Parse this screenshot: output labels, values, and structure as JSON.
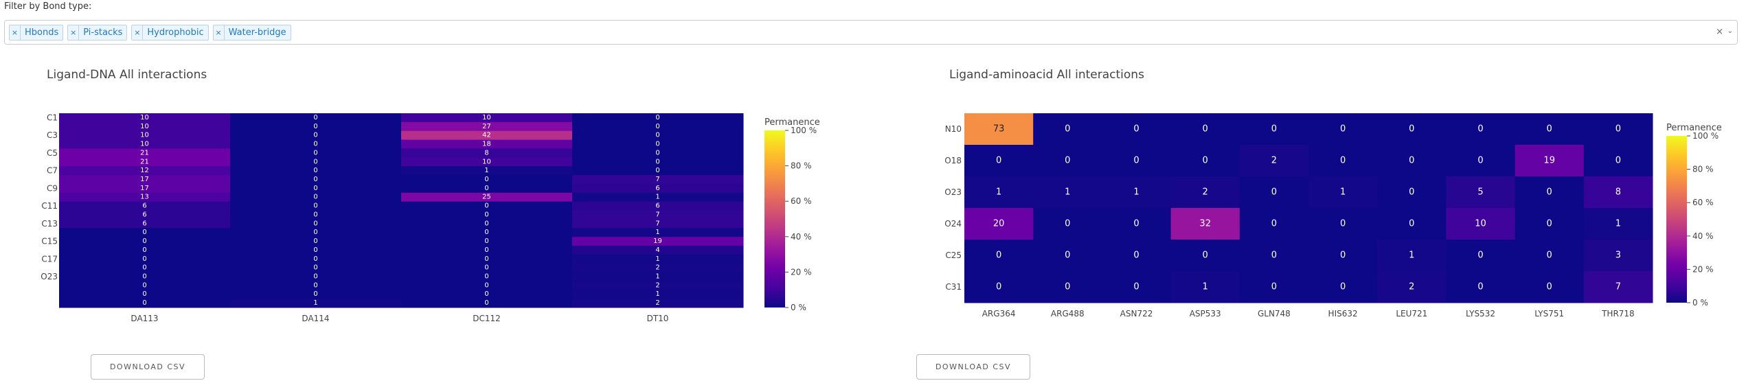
{
  "filter": {
    "label": "Filter by Bond type:",
    "tags": [
      {
        "remove": "×",
        "label": "Hbonds"
      },
      {
        "remove": "×",
        "label": "Pi-stacks"
      },
      {
        "remove": "×",
        "label": "Hydrophobic"
      },
      {
        "remove": "×",
        "label": "Water-bridge"
      }
    ],
    "clear_glyph": "×",
    "dropdown_glyph": "⌄"
  },
  "colorbar": {
    "title": "Permanence",
    "ticks": [
      "100 %",
      "80 %",
      "60 %",
      "40 %",
      "20 %",
      "0 %"
    ],
    "colors": [
      "#f0f921",
      "#fdca26",
      "#fb9f3a",
      "#ed7953",
      "#d8576b",
      "#bd3786",
      "#9c179e",
      "#7201a8",
      "#46039f",
      "#0d0887"
    ]
  },
  "panels": [
    {
      "title": "Ligand-DNA All interactions",
      "download_label": "DOWNLOAD CSV"
    },
    {
      "title": "Ligand-aminoacid All interactions",
      "download_label": "DOWNLOAD CSV"
    }
  ],
  "chart_data": [
    {
      "type": "heatmap",
      "title": "Ligand-DNA All interactions",
      "x": [
        "DA113",
        "DA114",
        "DC112",
        "DT10"
      ],
      "y_tick_labels": [
        "C1",
        "C3",
        "C5",
        "C7",
        "C9",
        "C11",
        "C13",
        "C15",
        "C17",
        "O23"
      ],
      "rows": 22,
      "z": [
        [
          10,
          0,
          10,
          0
        ],
        [
          10,
          0,
          27,
          0
        ],
        [
          10,
          0,
          42,
          0
        ],
        [
          10,
          0,
          18,
          0
        ],
        [
          21,
          0,
          8,
          0
        ],
        [
          21,
          0,
          10,
          0
        ],
        [
          12,
          0,
          1,
          0
        ],
        [
          17,
          0,
          0,
          7
        ],
        [
          17,
          0,
          0,
          6
        ],
        [
          13,
          0,
          25,
          1
        ],
        [
          6,
          0,
          0,
          6
        ],
        [
          6,
          0,
          0,
          7
        ],
        [
          6,
          0,
          0,
          7
        ],
        [
          0,
          0,
          0,
          1
        ],
        [
          0,
          0,
          0,
          19
        ],
        [
          0,
          0,
          0,
          4
        ],
        [
          0,
          0,
          0,
          1
        ],
        [
          0,
          0,
          0,
          2
        ],
        [
          0,
          0,
          0,
          1
        ],
        [
          0,
          0,
          0,
          2
        ],
        [
          0,
          0,
          0,
          1
        ],
        [
          0,
          1,
          0,
          2
        ]
      ],
      "zlim": [
        0,
        100
      ],
      "colorbar_title": "Permanence"
    },
    {
      "type": "heatmap",
      "title": "Ligand-aminoacid All interactions",
      "x": [
        "ARG364",
        "ARG488",
        "ASN722",
        "ASP533",
        "GLN748",
        "HIS632",
        "LEU721",
        "LYS532",
        "LYS751",
        "THR718"
      ],
      "y": [
        "N10",
        "O18",
        "O23",
        "O24",
        "C25",
        "C31"
      ],
      "z": [
        [
          73,
          0,
          0,
          0,
          0,
          0,
          0,
          0,
          0,
          0
        ],
        [
          0,
          0,
          0,
          0,
          2,
          0,
          0,
          0,
          19,
          0
        ],
        [
          1,
          1,
          1,
          2,
          0,
          1,
          0,
          5,
          0,
          8
        ],
        [
          20,
          0,
          0,
          32,
          0,
          0,
          0,
          10,
          0,
          1
        ],
        [
          0,
          0,
          0,
          0,
          0,
          0,
          1,
          0,
          0,
          3
        ],
        [
          0,
          0,
          0,
          1,
          0,
          0,
          2,
          0,
          0,
          7
        ]
      ],
      "zlim": [
        0,
        100
      ],
      "colorbar_title": "Permanence"
    }
  ]
}
